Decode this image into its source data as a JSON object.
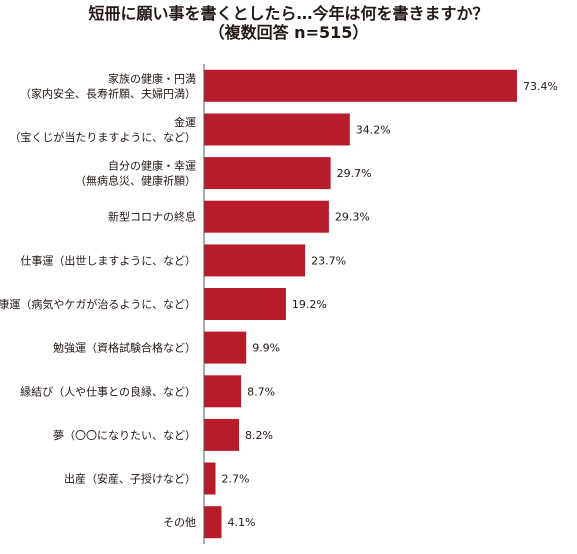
{
  "chart_data": {
    "type": "bar",
    "orientation": "horizontal",
    "title": "短冊に願い事を書くとしたら…今年は何を書きますか？",
    "subtitle": "（複数回答 n=515）",
    "categories": [
      [
        "家族の健康・円満",
        "（家内安全、長寿祈願、夫婦円満）"
      ],
      [
        "金運",
        "（宝くじが当たりますように、など）"
      ],
      [
        "自分の健康・幸運",
        "（無病息災、健康祈願）"
      ],
      [
        "新型コロナの終息"
      ],
      [
        "仕事運（出世しますように、など）"
      ],
      [
        "健康運（病気やケガが治るように、など）"
      ],
      [
        "勉強運（資格試験合格など）"
      ],
      [
        "縁結び（人や仕事との良縁、など）"
      ],
      [
        "夢（〇〇になりたい、など）"
      ],
      [
        "出産（安産、子授けなど）"
      ],
      [
        "その他"
      ]
    ],
    "values": [
      73.4,
      34.2,
      29.7,
      29.3,
      23.7,
      19.2,
      9.9,
      8.7,
      8.2,
      2.7,
      4.1
    ],
    "value_labels": [
      "73.4%",
      "34.2%",
      "29.7%",
      "29.3%",
      "23.7%",
      "19.2%",
      "9.9%",
      "8.7%",
      "8.2%",
      "2.7%",
      "4.1%"
    ],
    "xlim": [
      0,
      80
    ],
    "grid": false,
    "bar_color": "#b81c2b",
    "axis_color": "#555555"
  }
}
